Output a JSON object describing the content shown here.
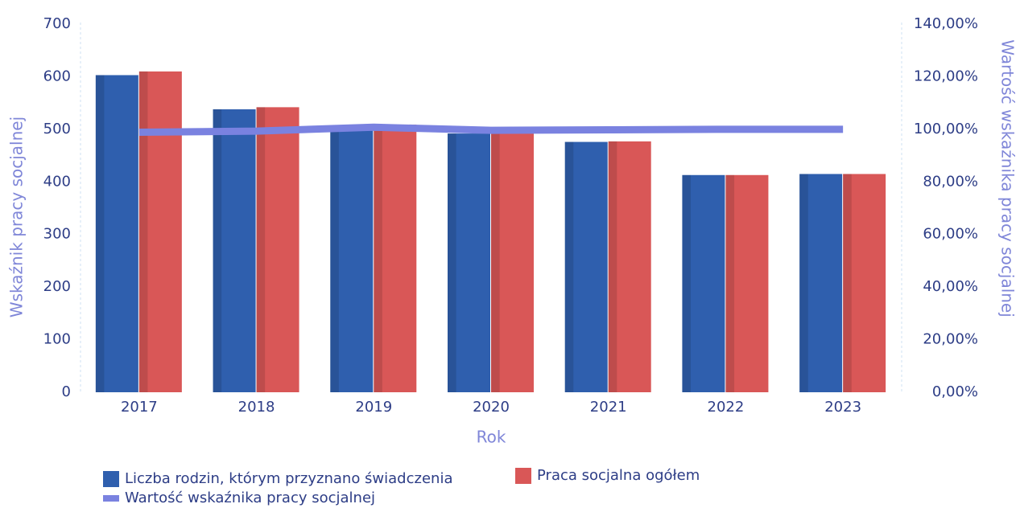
{
  "chart_data": {
    "type": "bar",
    "categories": [
      "2017",
      "2018",
      "2019",
      "2020",
      "2021",
      "2022",
      "2023"
    ],
    "series": [
      {
        "name": "Liczba rodzin, którym przyznano świadczenia",
        "color": "#2f5fae",
        "values": [
          603,
          538,
          505,
          492,
          476,
          413,
          415
        ]
      },
      {
        "name": "Praca socjalna ogółem",
        "color": "#d95757",
        "values": [
          610,
          542,
          509,
          494,
          477,
          413,
          415
        ]
      },
      {
        "name": "Wartość wskaźnika pracy socjalnej",
        "color": "#7a82e0",
        "type": "line",
        "axis": "y2",
        "values": [
          98.9,
          99.3,
          100.8,
          99.6,
          99.8,
          100,
          100
        ]
      }
    ],
    "xlabel": "Rok",
    "ylabel": "Wskaźnik pracy socjalnej",
    "y2label": "Wartość wskaźnika pracy socjalnej",
    "ylim": [
      0,
      700
    ],
    "yticks": [
      0,
      100,
      200,
      300,
      400,
      500,
      600,
      700
    ],
    "y2lim": [
      0,
      140
    ],
    "y2ticks": [
      {
        "value": 0,
        "label": "0,00%"
      },
      {
        "value": 20,
        "label": "20,00%"
      },
      {
        "value": 40,
        "label": "40,00%"
      },
      {
        "value": 60,
        "label": "60,00%"
      },
      {
        "value": 80,
        "label": "80,00%"
      },
      {
        "value": 100,
        "label": "100,00%"
      },
      {
        "value": 120,
        "label": "120,00%"
      },
      {
        "value": 140,
        "label": "140,00%"
      }
    ],
    "legend": "bottom-left"
  }
}
